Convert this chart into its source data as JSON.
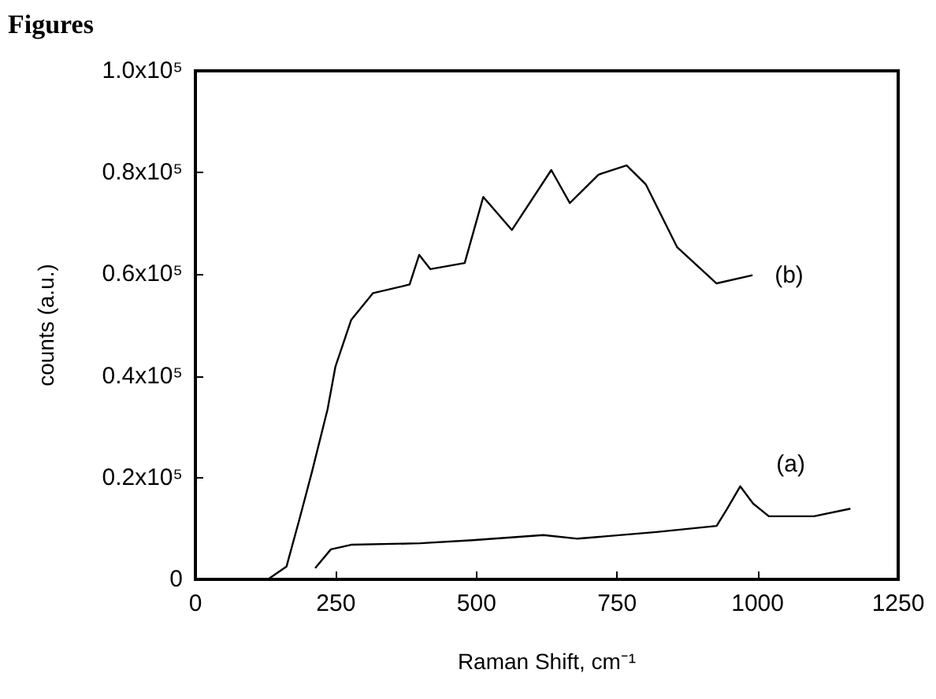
{
  "chart_data": {
    "type": "line",
    "title": "Figures",
    "xlabel": "Raman Shift, cm⁻¹",
    "ylabel": "counts (a.u.)",
    "xlim": [
      0,
      1250
    ],
    "xticks": [
      0,
      250,
      500,
      750,
      1000,
      1250
    ],
    "ylim": [
      0,
      100000
    ],
    "yticks": [
      0,
      {
        "value": 20000,
        "label": "0.2x10⁵"
      },
      {
        "value": 40000,
        "label": "0.4x10⁵"
      },
      {
        "value": 60000,
        "label": "0.6x10⁵"
      },
      {
        "value": 80000,
        "label": "0.8x10⁵"
      },
      {
        "value": 100000,
        "label": "1.0x10⁵"
      }
    ],
    "grid": false,
    "legend": false,
    "marker": "none",
    "line_style": "solid",
    "series": [
      {
        "name": "(a)",
        "color": "#000000",
        "x": [
          213,
          241,
          277,
          400,
          493,
          619,
          680,
          820,
          927,
          946,
          969,
          992,
          1020,
          1100,
          1165
        ],
        "values": [
          2200,
          5900,
          6800,
          7100,
          7700,
          8700,
          8000,
          9300,
          10500,
          13900,
          18300,
          14900,
          12400,
          12400,
          13900
        ]
      },
      {
        "name": "(b)",
        "color": "#000000",
        "x": [
          30,
          129,
          162,
          185,
          207,
          235,
          249,
          277,
          316,
          367,
          381,
          398,
          418,
          479,
          512,
          563,
          633,
          666,
          717,
          767,
          801,
          857,
          927,
          991
        ],
        "values": [
          0,
          0,
          2500,
          11800,
          21000,
          33400,
          41800,
          51000,
          56300,
          57600,
          58000,
          63800,
          61000,
          62200,
          75200,
          68700,
          80500,
          74000,
          79600,
          81400,
          77700,
          65300,
          58200,
          59800
        ]
      }
    ]
  }
}
